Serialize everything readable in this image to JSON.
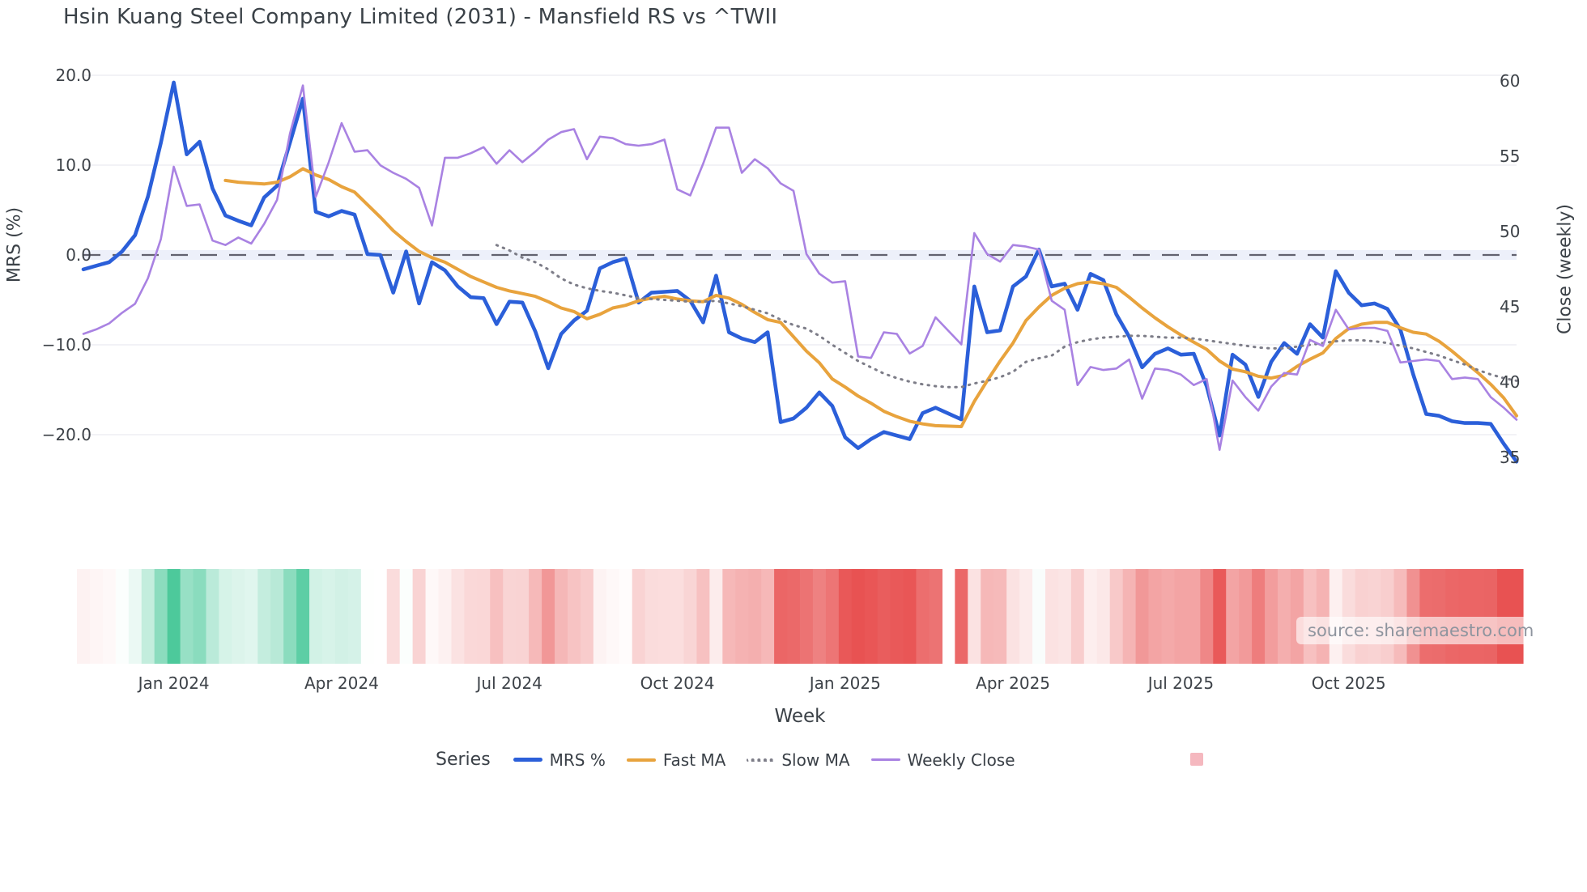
{
  "title": "Hsin Kuang Steel Company Limited (2031) - Mansfield RS vs ^TWII",
  "source_text": "source: sharemaestro.com",
  "colors": {
    "mrs": "#2b5fd9",
    "fast_ma": "#e8a33d",
    "slow_ma": "#7d7d88",
    "weekly_close": "#a982e2",
    "zero_line": "#62626f",
    "zero_band": "#edf0fa",
    "gridline": "#f2f2f6",
    "heat_green_max": "#3cc492",
    "heat_red_max": "#e85252",
    "heat_legend_swatch": "#f5b8bf",
    "tick_text": "#3d4248",
    "title_text": "#3b4248",
    "source_text": "#8e949e"
  },
  "legend": {
    "title": "Series",
    "items": [
      {
        "label": "MRS %",
        "swatch": "mrs-line-swatch",
        "color": "#2b5fd9",
        "style": "solid"
      },
      {
        "label": "Fast MA",
        "swatch": "fast-ma-line-swatch",
        "color": "#e8a33d",
        "style": "solid"
      },
      {
        "label": "Slow MA",
        "swatch": "slow-ma-line-swatch",
        "color": "#7d7d88",
        "style": "dotted"
      },
      {
        "label": "Weekly Close",
        "swatch": "weekly-close-line-swatch",
        "color": "#a982e2",
        "style": "solid"
      }
    ]
  },
  "axes": {
    "left": {
      "label": "MRS (%)",
      "ticks": [
        20,
        10,
        0,
        -10,
        -20
      ],
      "tick_labels": [
        "20.0",
        "10.0",
        "0.0",
        "−10.0",
        "−20.0"
      ]
    },
    "right": {
      "label": "Close (weekly)",
      "ticks": [
        60,
        55,
        50,
        45,
        40,
        35
      ],
      "tick_labels": [
        "60",
        "55",
        "50",
        "45",
        "40",
        "35"
      ]
    },
    "x": {
      "label": "Week",
      "ticks": [
        {
          "index": 7,
          "label": "Jan 2024"
        },
        {
          "index": 20,
          "label": "Apr 2024"
        },
        {
          "index": 33,
          "label": "Jul 2024"
        },
        {
          "index": 46,
          "label": "Oct 2024"
        },
        {
          "index": 59,
          "label": "Jan 2025"
        },
        {
          "index": 72,
          "label": "Apr 2025"
        },
        {
          "index": 85,
          "label": "Jul 2025"
        },
        {
          "index": 98,
          "label": "Oct 2025"
        }
      ]
    }
  },
  "chart_data": {
    "type": "line",
    "x_unit": "week",
    "n_points": 112,
    "zero_reference_line": 0,
    "legend_position": "bottom",
    "grid": true,
    "missing_week_index": 67,
    "series": [
      {
        "name": "MRS %",
        "axis": "left",
        "color": "#2b5fd9",
        "width": 4.6,
        "dash": "solid",
        "values": [
          -1.6,
          -1.2,
          -0.8,
          0.4,
          2.2,
          6.5,
          12.5,
          19.2,
          11.2,
          12.6,
          7.4,
          4.4,
          3.8,
          3.3,
          6.4,
          7.7,
          12.5,
          17.4,
          4.8,
          4.3,
          4.9,
          4.5,
          0.1,
          0.0,
          -4.2,
          0.4,
          -5.4,
          -0.8,
          -1.7,
          -3.5,
          -4.7,
          -4.8,
          -7.7,
          -5.2,
          -5.3,
          -8.5,
          -12.6,
          -8.8,
          -7.3,
          -6.2,
          -1.5,
          -0.8,
          -0.4,
          -5.3,
          -4.2,
          -4.1,
          -4.0,
          -5.1,
          -7.5,
          -2.3,
          -8.6,
          -9.3,
          -9.7,
          -8.6,
          -18.6,
          -18.2,
          -17.0,
          -15.3,
          -16.8,
          -20.3,
          -21.5,
          -20.5,
          -19.7,
          -20.1,
          -20.5,
          -17.6,
          -17.0,
          null,
          -18.3,
          -3.5,
          -8.6,
          -8.4,
          -3.5,
          -2.4,
          0.6,
          -3.5,
          -3.2,
          -6.1,
          -2.1,
          -2.8,
          -6.6,
          -9.1,
          -12.5,
          -11.0,
          -10.4,
          -11.1,
          -11.0,
          -14.6,
          -20.1,
          -11.1,
          -12.2,
          -15.8,
          -11.9,
          -9.8,
          -11.0,
          -7.7,
          -9.2,
          -1.8,
          -4.2,
          -5.6,
          -5.4,
          -6.0,
          -8.3,
          -13.3,
          -17.7,
          -17.9,
          -18.5,
          -18.7,
          -18.7,
          -18.8,
          -21.0,
          -23.0
        ]
      },
      {
        "name": "Fast MA",
        "axis": "left",
        "color": "#e8a33d",
        "width": 4.0,
        "dash": "solid",
        "values": [
          null,
          null,
          null,
          null,
          null,
          null,
          null,
          null,
          null,
          null,
          null,
          8.3,
          8.1,
          8.0,
          7.9,
          8.1,
          8.7,
          9.6,
          8.9,
          8.4,
          7.6,
          7.0,
          5.6,
          4.2,
          2.7,
          1.5,
          0.4,
          -0.3,
          -0.8,
          -1.6,
          -2.4,
          -3.0,
          -3.6,
          -4.0,
          -4.3,
          -4.6,
          -5.2,
          -5.9,
          -6.3,
          -7.1,
          -6.6,
          -5.9,
          -5.6,
          -5.1,
          -4.8,
          -4.6,
          -4.9,
          -5.1,
          -5.2,
          -4.5,
          -4.8,
          -5.5,
          -6.4,
          -7.2,
          -7.5,
          -9.1,
          -10.7,
          -12.0,
          -13.8,
          -14.7,
          -15.7,
          -16.5,
          -17.4,
          -18.0,
          -18.5,
          -18.8,
          -19.0,
          null,
          -19.1,
          -16.3,
          -14.0,
          -11.8,
          -9.8,
          -7.3,
          -5.8,
          -4.5,
          -3.7,
          -3.2,
          -3.0,
          -3.2,
          -3.6,
          -4.7,
          -5.9,
          -7.0,
          -8.0,
          -8.9,
          -9.7,
          -10.5,
          -11.8,
          -12.7,
          -13.0,
          -13.5,
          -13.7,
          -13.4,
          -12.4,
          -11.6,
          -10.9,
          -9.3,
          -8.2,
          -7.7,
          -7.5,
          -7.5,
          -8.1,
          -8.6,
          -8.8,
          -9.6,
          -10.7,
          -11.9,
          -13.1,
          -14.4,
          -15.9,
          -17.9
        ]
      },
      {
        "name": "Slow MA",
        "axis": "left",
        "color": "#7d7d88",
        "width": 3.0,
        "dash": "dotted",
        "values": [
          null,
          null,
          null,
          null,
          null,
          null,
          null,
          null,
          null,
          null,
          null,
          null,
          null,
          null,
          null,
          null,
          null,
          null,
          null,
          null,
          null,
          null,
          null,
          null,
          null,
          null,
          null,
          null,
          null,
          null,
          null,
          null,
          1.1,
          0.5,
          -0.3,
          -0.8,
          -1.6,
          -2.6,
          -3.3,
          -3.7,
          -4.0,
          -4.2,
          -4.5,
          -4.8,
          -4.9,
          -5.0,
          -5.1,
          -5.2,
          -5.2,
          -5.1,
          -5.4,
          -5.7,
          -6.1,
          -6.5,
          -7.2,
          -7.8,
          -8.2,
          -9.0,
          -10.0,
          -10.9,
          -11.8,
          -12.5,
          -13.2,
          -13.7,
          -14.1,
          -14.4,
          -14.6,
          -14.7,
          -14.7,
          -14.3,
          -14.0,
          -13.6,
          -13.0,
          -11.9,
          -11.5,
          -11.2,
          -10.2,
          -9.7,
          -9.4,
          -9.2,
          -9.1,
          -9.0,
          -9.0,
          -9.1,
          -9.2,
          -9.2,
          -9.3,
          -9.5,
          -9.7,
          -9.9,
          -10.1,
          -10.3,
          -10.4,
          -10.4,
          -10.2,
          -10.0,
          -9.8,
          -9.6,
          -9.5,
          -9.5,
          -9.6,
          -9.8,
          -10.1,
          -10.4,
          -10.8,
          -11.2,
          -11.7,
          -12.2,
          -12.8,
          -13.3,
          -13.7,
          -14.0
        ]
      },
      {
        "name": "Weekly Close",
        "axis": "right",
        "color": "#a982e2",
        "width": 2.6,
        "dash": "solid",
        "values": [
          43.2,
          43.5,
          43.9,
          44.6,
          45.2,
          46.9,
          49.5,
          54.3,
          51.7,
          51.8,
          49.4,
          49.1,
          49.6,
          49.2,
          50.5,
          52.1,
          56.5,
          59.7,
          52.3,
          54.6,
          57.2,
          55.3,
          55.4,
          54.4,
          53.9,
          53.5,
          52.9,
          50.4,
          54.9,
          54.9,
          55.2,
          55.6,
          54.5,
          55.4,
          54.6,
          55.3,
          56.1,
          56.6,
          56.8,
          54.8,
          56.3,
          56.2,
          55.8,
          55.7,
          55.8,
          56.1,
          52.8,
          52.4,
          54.5,
          56.9,
          56.9,
          53.9,
          54.8,
          54.2,
          53.2,
          52.7,
          48.5,
          47.2,
          46.6,
          46.7,
          41.7,
          41.6,
          43.3,
          43.2,
          41.9,
          42.4,
          44.3,
          null,
          42.5,
          49.9,
          48.5,
          48.0,
          49.1,
          49.0,
          48.8,
          45.4,
          44.8,
          39.8,
          41.0,
          40.8,
          40.9,
          41.5,
          38.9,
          40.9,
          40.8,
          40.5,
          39.8,
          40.2,
          35.5,
          40.1,
          39.0,
          38.1,
          39.7,
          40.6,
          40.5,
          42.8,
          42.4,
          44.8,
          43.5,
          43.6,
          43.6,
          43.4,
          41.3,
          41.4,
          41.5,
          41.4,
          40.2,
          40.3,
          40.2,
          39.0,
          38.3,
          37.5
        ]
      }
    ],
    "heatmap": {
      "name": "MRS heat strip",
      "description": "weekly strip colored by MRS %: green positive, red negative, white gap at missing week",
      "source_series": "MRS %"
    }
  }
}
